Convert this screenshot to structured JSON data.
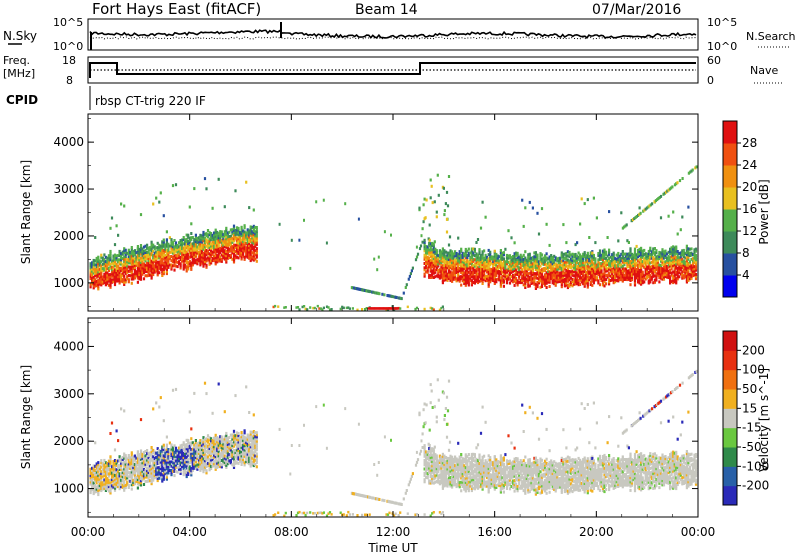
{
  "header": {
    "title": "Fort Hays East (fitACF)",
    "beam": "Beam 14",
    "date": "07/Mar/2016"
  },
  "noise_panel": {
    "left_label": "N.Sky",
    "left_ticks": [
      "10^5",
      "10^0"
    ],
    "right_ticks": [
      "10^5",
      "10^0"
    ],
    "right_label": "N.Search"
  },
  "freq_panel": {
    "left_label_1": "Freq.",
    "left_label_2": "[MHz]",
    "left_ticks": [
      "18",
      "8"
    ],
    "right_ticks": [
      "60",
      "0"
    ],
    "right_label": "Nave"
  },
  "cpid": {
    "label": "CPID",
    "program": "rbsp CT-trig 220 IF"
  },
  "colors": {
    "power_scale": [
      "#0000ee",
      "#2750a0",
      "#3d8a5a",
      "#55b04a",
      "#e8c020",
      "#f09010",
      "#f05010",
      "#e01010"
    ],
    "velocity_scale": [
      "#2a2ab8",
      "#2860a8",
      "#2f8a4a",
      "#6ac840",
      "#c8c8c0",
      "#f0b020",
      "#f07010",
      "#e83010",
      "#d01010"
    ]
  },
  "chart_data": [
    {
      "type": "heatmap",
      "name": "power",
      "ylabel": "Slant Range [km]",
      "xlabel": "Time UT",
      "x_ticks": [
        "00:00",
        "04:00",
        "08:00",
        "12:00",
        "16:00",
        "20:00",
        "00:00"
      ],
      "y_ticks": [
        1000,
        2000,
        3000,
        4000
      ],
      "ylim": [
        400,
        4600
      ],
      "xlim_hours": [
        0,
        24
      ],
      "colorbar": {
        "label": "Power [dB]",
        "ticks": [
          "28",
          "24",
          "20",
          "16",
          "12",
          "8",
          "4"
        ]
      },
      "echo_band_center_km": [
        [
          0,
          1100
        ],
        [
          1,
          1250
        ],
        [
          2,
          1350
        ],
        [
          3,
          1500
        ],
        [
          4,
          1600
        ],
        [
          5,
          1700
        ],
        [
          6,
          1800
        ],
        [
          13,
          1500
        ],
        [
          14,
          1300
        ],
        [
          16,
          1250
        ],
        [
          18,
          1200
        ],
        [
          20,
          1250
        ],
        [
          22,
          1300
        ],
        [
          24,
          1350
        ]
      ]
    },
    {
      "type": "heatmap",
      "name": "velocity",
      "ylabel": "Slant Range [km]",
      "xlabel": "Time UT",
      "x_ticks": [
        "00:00",
        "04:00",
        "08:00",
        "12:00",
        "16:00",
        "20:00",
        "00:00"
      ],
      "y_ticks": [
        1000,
        2000,
        3000,
        4000
      ],
      "ylim": [
        400,
        4600
      ],
      "xlim_hours": [
        0,
        24
      ],
      "colorbar": {
        "label": "Velocity [m s^-1]",
        "ticks": [
          "200",
          "100",
          "50",
          "15",
          "-15",
          "-50",
          "-100",
          "-200"
        ]
      }
    }
  ]
}
